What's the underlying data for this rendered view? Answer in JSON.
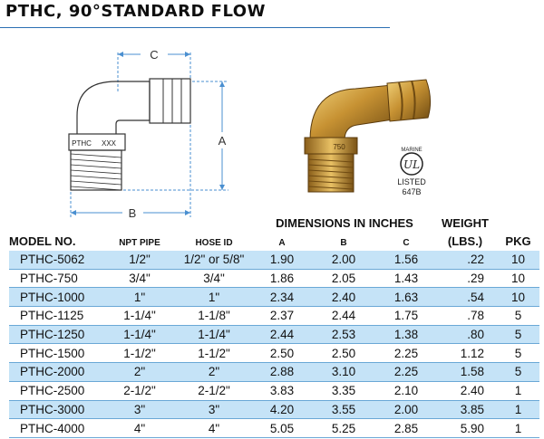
{
  "title": "PTHC, 90°STANDARD FLOW",
  "diagram": {
    "label_c": "C",
    "label_a": "A",
    "label_b": "B",
    "stamp_left": "PTHC",
    "stamp_right": "XXX"
  },
  "photo": {
    "stamp": "750"
  },
  "cert": {
    "marine": "MARINE",
    "logo_letters": "UL",
    "listed": "LISTED",
    "number": "647B"
  },
  "table": {
    "group_header": "DIMENSIONS IN INCHES",
    "headers": {
      "model": "MODEL NO.",
      "npt": "NPT PIPE",
      "hose": "HOSE ID",
      "a": "A",
      "b": "B",
      "c": "C",
      "weight_line1": "WEIGHT",
      "weight_line2": "(LBS.)",
      "pkg": "PKG"
    },
    "rows": [
      {
        "model": "PTHC-5062",
        "npt": "1/2\"",
        "hose": "1/2\" or 5/8\"",
        "a": "1.90",
        "b": "2.00",
        "c": "1.56",
        "weight": ".22",
        "pkg": "10"
      },
      {
        "model": "PTHC-750",
        "npt": "3/4\"",
        "hose": "3/4\"",
        "a": "1.86",
        "b": "2.05",
        "c": "1.43",
        "weight": ".29",
        "pkg": "10"
      },
      {
        "model": "PTHC-1000",
        "npt": "1\"",
        "hose": "1\"",
        "a": "2.34",
        "b": "2.40",
        "c": "1.63",
        "weight": ".54",
        "pkg": "10"
      },
      {
        "model": "PTHC-1125",
        "npt": "1-1/4\"",
        "hose": "1-1/8\"",
        "a": "2.37",
        "b": "2.44",
        "c": "1.75",
        "weight": ".78",
        "pkg": "5"
      },
      {
        "model": "PTHC-1250",
        "npt": "1-1/4\"",
        "hose": "1-1/4\"",
        "a": "2.44",
        "b": "2.53",
        "c": "1.38",
        "weight": ".80",
        "pkg": "5"
      },
      {
        "model": "PTHC-1500",
        "npt": "1-1/2\"",
        "hose": "1-1/2\"",
        "a": "2.50",
        "b": "2.50",
        "c": "2.25",
        "weight": "1.12",
        "pkg": "5"
      },
      {
        "model": "PTHC-2000",
        "npt": "2\"",
        "hose": "2\"",
        "a": "2.88",
        "b": "3.10",
        "c": "2.25",
        "weight": "1.58",
        "pkg": "5"
      },
      {
        "model": "PTHC-2500",
        "npt": "2-1/2\"",
        "hose": "2-1/2\"",
        "a": "3.83",
        "b": "3.35",
        "c": "2.10",
        "weight": "2.40",
        "pkg": "1"
      },
      {
        "model": "PTHC-3000",
        "npt": "3\"",
        "hose": "3\"",
        "a": "4.20",
        "b": "3.55",
        "c": "2.00",
        "weight": "3.85",
        "pkg": "1"
      },
      {
        "model": "PTHC-4000",
        "npt": "4\"",
        "hose": "4\"",
        "a": "5.05",
        "b": "5.25",
        "c": "2.85",
        "weight": "5.90",
        "pkg": "1"
      }
    ]
  }
}
